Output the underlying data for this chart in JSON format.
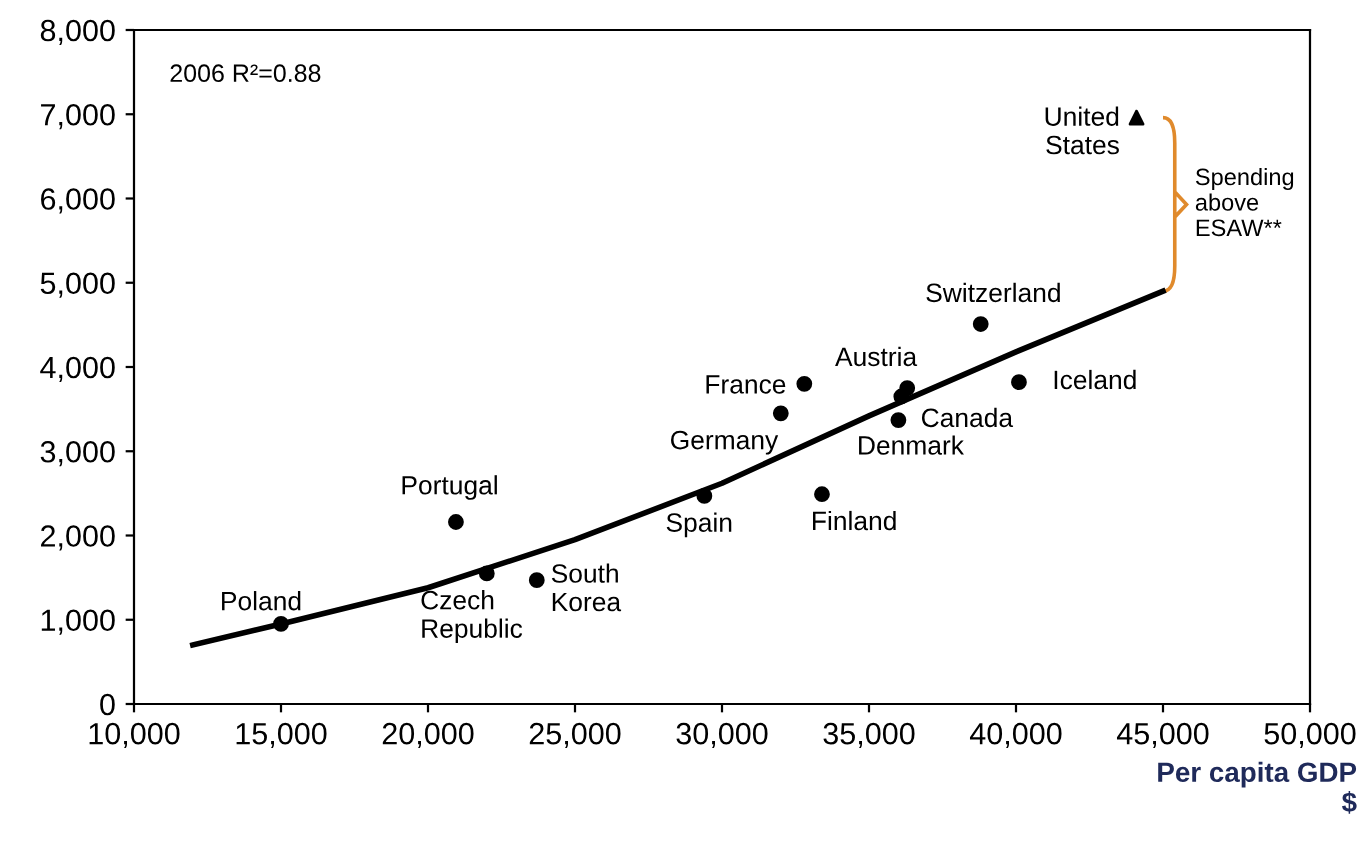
{
  "chart_data": {
    "type": "scatter",
    "xlabel": "Per capita GDP\n$",
    "xlim": [
      10000,
      50000
    ],
    "xticks": [
      {
        "value": 10000,
        "label": "10,000"
      },
      {
        "value": 15000,
        "label": "15,000"
      },
      {
        "value": 20000,
        "label": "20,000"
      },
      {
        "value": 25000,
        "label": "25,000"
      },
      {
        "value": 30000,
        "label": "30,000"
      },
      {
        "value": 35000,
        "label": "35,000"
      },
      {
        "value": 40000,
        "label": "40,000"
      },
      {
        "value": 45000,
        "label": "45,000"
      },
      {
        "value": 50000,
        "label": "50,000"
      }
    ],
    "ylim": [
      0,
      8000
    ],
    "yticks": [
      0,
      {
        "value": 1000,
        "label": "1,000"
      },
      {
        "value": 2000,
        "label": "2,000"
      },
      {
        "value": 3000,
        "label": "3,000"
      },
      {
        "value": 4000,
        "label": "4,000"
      },
      {
        "value": 5000,
        "label": "5,000"
      },
      {
        "value": 6000,
        "label": "6,000"
      },
      {
        "value": 7000,
        "label": "7,000"
      },
      {
        "value": 8000,
        "label": "8,000"
      }
    ],
    "grid": false,
    "legend": false,
    "series": [
      {
        "marker": "circle",
        "color": "#000000",
        "x": [
          15000,
          20950,
          22000,
          23700,
          29400,
          32000,
          32800,
          33400,
          36300,
          36000,
          36100,
          38800,
          40100
        ],
        "values": [
          950,
          2160,
          1550,
          1470,
          2470,
          3450,
          3800,
          2490,
          3750,
          3370,
          3650,
          4510,
          3820
        ]
      },
      {
        "marker": "triangle",
        "color": "#000000",
        "x": [
          44100
        ],
        "values": [
          6960
        ]
      },
      {
        "type": "line",
        "marker": "none",
        "line_style": "solid",
        "color": "#000000",
        "x": [
          12000,
          15000,
          20000,
          25000,
          30000,
          35000,
          40000,
          45000
        ],
        "values": [
          700,
          950,
          1380,
          1950,
          2620,
          3420,
          4180,
          4900
        ]
      }
    ],
    "annotations": [
      "2006 R²=0.88",
      {
        "text": "Poland",
        "x": 15000,
        "y": 950
      },
      {
        "text": "Portugal",
        "x": 20950,
        "y": 2160
      },
      {
        "text": "Czech\nRepublic",
        "x": 22000,
        "y": 1550
      },
      {
        "text": "South\nKorea",
        "x": 23700,
        "y": 1470
      },
      {
        "text": "Spain",
        "x": 29400,
        "y": 2470
      },
      {
        "text": "Germany",
        "x": 32000,
        "y": 3450
      },
      {
        "text": "France",
        "x": 32800,
        "y": 3800
      },
      {
        "text": "Finland",
        "x": 33400,
        "y": 2490
      },
      {
        "text": "Austria",
        "x": 36300,
        "y": 3750
      },
      {
        "text": "Canada",
        "x": 36000,
        "y": 3370
      },
      {
        "text": "Denmark",
        "x": 36100,
        "y": 3650
      },
      {
        "text": "Switzerland",
        "x": 38800,
        "y": 4510
      },
      {
        "text": "Iceland",
        "x": 40100,
        "y": 3820
      },
      {
        "text": "United\nStates",
        "x": 44100,
        "y": 6960
      },
      "Spending\nabove\nESAW**"
    ]
  }
}
